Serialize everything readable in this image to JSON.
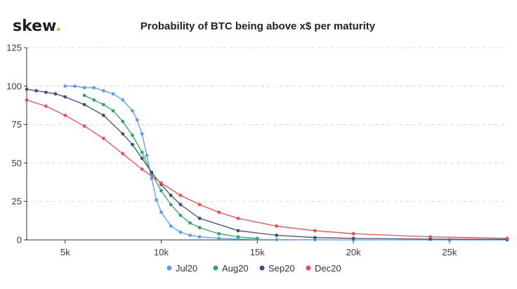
{
  "brand": {
    "name": "skew",
    "dot": "."
  },
  "chart_data": {
    "type": "line",
    "title": "Probability of BTC being above x$ per maturity",
    "xlabel": "",
    "ylabel": "",
    "xlim": [
      3000,
      28000
    ],
    "ylim": [
      0,
      125
    ],
    "x_ticks": [
      {
        "value": 5000,
        "label": "5k"
      },
      {
        "value": 10000,
        "label": "10k"
      },
      {
        "value": 15000,
        "label": "15k"
      },
      {
        "value": 20000,
        "label": "20k"
      },
      {
        "value": 25000,
        "label": "25k"
      }
    ],
    "y_ticks": [
      {
        "value": 0,
        "label": "0"
      },
      {
        "value": 25,
        "label": "25"
      },
      {
        "value": 50,
        "label": "50"
      },
      {
        "value": 75,
        "label": "75"
      },
      {
        "value": 100,
        "label": "100"
      },
      {
        "value": 125,
        "label": "125"
      }
    ],
    "grid": true,
    "legend_position": "bottom",
    "series": [
      {
        "name": "Jul20",
        "color": "#5b9cf0",
        "points": [
          [
            5000,
            100
          ],
          [
            5500,
            100
          ],
          [
            6000,
            99
          ],
          [
            6500,
            99
          ],
          [
            7000,
            97
          ],
          [
            7500,
            95
          ],
          [
            8000,
            91
          ],
          [
            8500,
            84
          ],
          [
            8750,
            78
          ],
          [
            9000,
            69
          ],
          [
            9250,
            55
          ],
          [
            9500,
            40
          ],
          [
            9750,
            26
          ],
          [
            10000,
            18
          ],
          [
            10500,
            9
          ],
          [
            11000,
            5
          ],
          [
            11500,
            3
          ],
          [
            12000,
            2
          ],
          [
            13000,
            1
          ],
          [
            14000,
            0.5
          ],
          [
            15000,
            0.3
          ],
          [
            16000,
            0.2
          ],
          [
            18000,
            0.1
          ],
          [
            20000,
            0
          ],
          [
            25000,
            0
          ],
          [
            28000,
            0
          ]
        ]
      },
      {
        "name": "Aug20",
        "color": "#2fa66b",
        "points": [
          [
            6000,
            94
          ],
          [
            6500,
            91
          ],
          [
            7000,
            88
          ],
          [
            7500,
            84
          ],
          [
            8000,
            77
          ],
          [
            8500,
            68
          ],
          [
            9000,
            57
          ],
          [
            9500,
            43
          ],
          [
            10000,
            32
          ],
          [
            10500,
            23
          ],
          [
            11000,
            16
          ],
          [
            11500,
            11
          ],
          [
            12000,
            8
          ],
          [
            13000,
            4
          ],
          [
            14000,
            2
          ],
          [
            15000,
            1
          ]
        ]
      },
      {
        "name": "Sep20",
        "color": "#3d4f7c",
        "points": [
          [
            3000,
            98
          ],
          [
            3500,
            97
          ],
          [
            4000,
            96
          ],
          [
            4500,
            95
          ],
          [
            5000,
            93
          ],
          [
            6000,
            88
          ],
          [
            7000,
            81
          ],
          [
            8000,
            69
          ],
          [
            8500,
            62
          ],
          [
            9000,
            53
          ],
          [
            9500,
            44
          ],
          [
            10000,
            36
          ],
          [
            10500,
            29
          ],
          [
            11000,
            23
          ],
          [
            12000,
            14
          ],
          [
            14000,
            6
          ],
          [
            16000,
            3
          ],
          [
            18000,
            1.5
          ],
          [
            20000,
            1
          ],
          [
            24000,
            0.5
          ],
          [
            28000,
            0.3
          ]
        ]
      },
      {
        "name": "Dec20",
        "color": "#ee4e52",
        "points": [
          [
            3000,
            91
          ],
          [
            4000,
            87
          ],
          [
            5000,
            81
          ],
          [
            6000,
            74
          ],
          [
            7000,
            66
          ],
          [
            8000,
            56
          ],
          [
            9000,
            46
          ],
          [
            10000,
            37
          ],
          [
            11000,
            29
          ],
          [
            12000,
            23
          ],
          [
            13000,
            18
          ],
          [
            14000,
            14
          ],
          [
            16000,
            9
          ],
          [
            18000,
            6
          ],
          [
            20000,
            4
          ],
          [
            24000,
            2
          ],
          [
            28000,
            1
          ]
        ]
      }
    ]
  }
}
